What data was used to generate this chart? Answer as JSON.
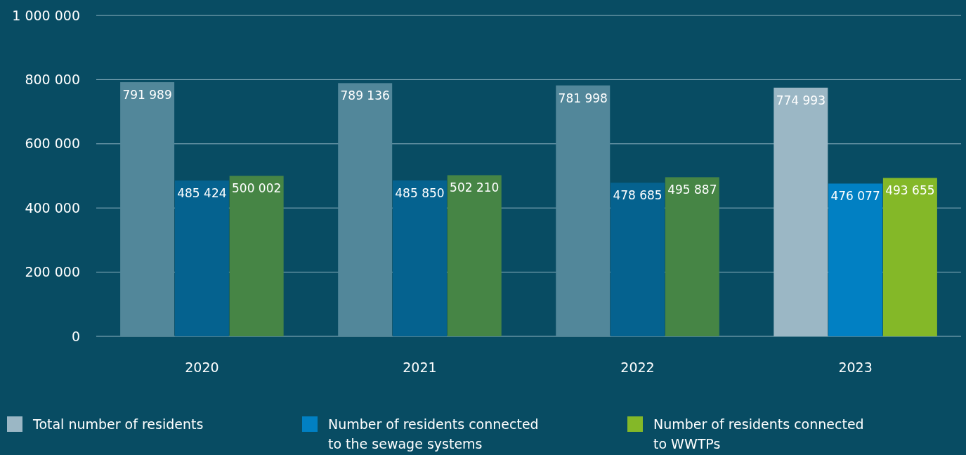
{
  "chart_data": {
    "type": "bar",
    "categories": [
      "2020",
      "2021",
      "2022",
      "2023"
    ],
    "series": [
      {
        "name": "Total number of residents",
        "color": "#9bb7c5",
        "colors": [
          "#52879a",
          "#52879a",
          "#52879a",
          "#9bb7c5"
        ],
        "values": [
          791989,
          789136,
          781998,
          774993
        ]
      },
      {
        "name": "Number of residents connected to the sewage systems",
        "color": "#0180c3",
        "colors": [
          "#05628f",
          "#05628f",
          "#05628f",
          "#0180c3"
        ],
        "values": [
          485424,
          485850,
          478685,
          476077
        ]
      },
      {
        "name": "Number of residents connected to WWTPs",
        "color": "#84b828",
        "colors": [
          "#468545",
          "#468545",
          "#468545",
          "#84b828"
        ],
        "values": [
          500002,
          502210,
          495887,
          493655
        ]
      }
    ],
    "ylim": [
      0,
      1000000
    ],
    "yticks": [
      {
        "value": 0,
        "label": "0"
      },
      {
        "value": 200000,
        "label": "200 000"
      },
      {
        "value": 400000,
        "label": "400 000"
      },
      {
        "value": 600000,
        "label": "600 000"
      },
      {
        "value": 800000,
        "label": "800 000"
      },
      {
        "value": 1000000,
        "label": "1 000 000"
      }
    ],
    "grid": "y",
    "legend": "bottom",
    "data_labels": true
  }
}
